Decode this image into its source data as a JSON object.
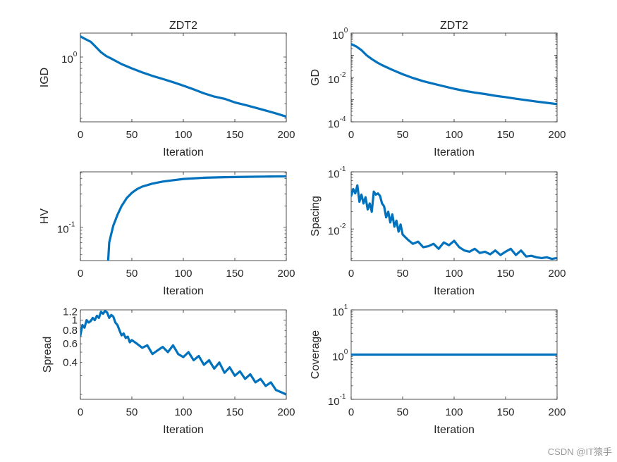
{
  "watermark": "CSDN @IT猿手",
  "line_color": "#0072BD",
  "chart_data": [
    {
      "type": "line",
      "title": "ZDT2",
      "xlabel": "Iteration",
      "ylabel": "IGD",
      "yscale": "log",
      "xlim": [
        0,
        200
      ],
      "ylim": [
        0.28,
        1.6
      ],
      "grid": false,
      "xticks": [
        "0",
        "50",
        "100",
        "150",
        "200"
      ],
      "yticks": [
        {
          "v": 1,
          "b": "10",
          "e": "0"
        }
      ],
      "x": [
        0,
        5,
        10,
        15,
        20,
        25,
        30,
        40,
        50,
        60,
        70,
        80,
        90,
        100,
        110,
        120,
        130,
        140,
        150,
        160,
        170,
        180,
        190,
        200
      ],
      "y": [
        1.5,
        1.42,
        1.35,
        1.22,
        1.1,
        1.02,
        0.97,
        0.87,
        0.8,
        0.74,
        0.69,
        0.65,
        0.61,
        0.57,
        0.53,
        0.49,
        0.46,
        0.44,
        0.41,
        0.39,
        0.37,
        0.35,
        0.33,
        0.31
      ]
    },
    {
      "type": "line",
      "title": "ZDT2",
      "xlabel": "Iteration",
      "ylabel": "GD",
      "yscale": "log",
      "xlim": [
        0,
        200
      ],
      "ylim": [
        0.0001,
        1
      ],
      "grid": false,
      "xticks": [
        "0",
        "50",
        "100",
        "150",
        "200"
      ],
      "yticks": [
        {
          "v": 1,
          "b": "10",
          "e": "0"
        },
        {
          "v": 0.01,
          "b": "10",
          "e": "-2"
        },
        {
          "v": 0.0001,
          "b": "10",
          "e": "-4"
        }
      ],
      "x": [
        0,
        5,
        10,
        15,
        20,
        25,
        30,
        40,
        50,
        60,
        70,
        80,
        90,
        100,
        110,
        120,
        130,
        140,
        150,
        160,
        170,
        180,
        190,
        200
      ],
      "y": [
        0.32,
        0.25,
        0.17,
        0.1,
        0.068,
        0.048,
        0.036,
        0.022,
        0.014,
        0.0095,
        0.0068,
        0.0052,
        0.004,
        0.0031,
        0.0025,
        0.0021,
        0.0018,
        0.0015,
        0.0013,
        0.0011,
        0.00095,
        0.00082,
        0.00072,
        0.00063
      ]
    },
    {
      "type": "line",
      "title": "",
      "xlabel": "Iteration",
      "ylabel": "HV",
      "yscale": "log",
      "xlim": [
        0,
        200
      ],
      "ylim": [
        0.033,
        0.62
      ],
      "grid": false,
      "xticks": [
        "0",
        "50",
        "100",
        "150",
        "200"
      ],
      "yticks": [
        {
          "v": 0.1,
          "b": "10",
          "e": "-1"
        }
      ],
      "x": [
        27,
        28,
        30,
        32,
        34,
        36,
        40,
        45,
        50,
        55,
        60,
        70,
        80,
        90,
        100,
        120,
        140,
        160,
        180,
        200
      ],
      "y": [
        0.033,
        0.06,
        0.08,
        0.105,
        0.125,
        0.15,
        0.2,
        0.26,
        0.31,
        0.35,
        0.38,
        0.42,
        0.45,
        0.47,
        0.49,
        0.51,
        0.52,
        0.525,
        0.53,
        0.535
      ]
    },
    {
      "type": "line",
      "title": "",
      "xlabel": "Iteration",
      "ylabel": "Spacing",
      "yscale": "log",
      "xlim": [
        0,
        200
      ],
      "ylim": [
        0.0028,
        0.1
      ],
      "grid": false,
      "xticks": [
        "0",
        "50",
        "100",
        "150",
        "200"
      ],
      "yticks": [
        {
          "v": 0.1,
          "b": "10",
          "e": "-1"
        },
        {
          "v": 0.01,
          "b": "10",
          "e": "-2"
        }
      ],
      "x": [
        0,
        2,
        4,
        6,
        8,
        10,
        12,
        14,
        16,
        18,
        20,
        22,
        24,
        26,
        28,
        30,
        32,
        34,
        36,
        38,
        40,
        42,
        44,
        46,
        48,
        50,
        55,
        60,
        65,
        70,
        75,
        80,
        85,
        90,
        95,
        100,
        105,
        110,
        115,
        120,
        125,
        130,
        135,
        140,
        145,
        150,
        155,
        160,
        165,
        170,
        175,
        180,
        185,
        190,
        195,
        200
      ],
      "y": [
        0.038,
        0.05,
        0.042,
        0.058,
        0.03,
        0.04,
        0.028,
        0.036,
        0.022,
        0.028,
        0.02,
        0.045,
        0.04,
        0.042,
        0.038,
        0.028,
        0.025,
        0.016,
        0.02,
        0.013,
        0.018,
        0.011,
        0.014,
        0.009,
        0.012,
        0.008,
        0.0065,
        0.0055,
        0.006,
        0.0048,
        0.005,
        0.0055,
        0.0045,
        0.0058,
        0.0052,
        0.0062,
        0.0048,
        0.0042,
        0.004,
        0.0045,
        0.0038,
        0.004,
        0.0036,
        0.0042,
        0.0035,
        0.004,
        0.0045,
        0.0035,
        0.0042,
        0.0033,
        0.0034,
        0.0032,
        0.0031,
        0.0032,
        0.003,
        0.0031
      ]
    },
    {
      "type": "line",
      "title": "",
      "xlabel": "Iteration",
      "ylabel": "Spread",
      "yscale": "log",
      "xlim": [
        0,
        200
      ],
      "ylim": [
        0.18,
        1.25
      ],
      "grid": false,
      "xticks": [
        "0",
        "50",
        "100",
        "150",
        "200"
      ],
      "yticks": [
        {
          "v": 1.2,
          "t": "1.2"
        },
        {
          "v": 1,
          "t": "1"
        },
        {
          "v": 0.8,
          "t": "0.8"
        },
        {
          "v": 0.6,
          "t": "0.6"
        },
        {
          "v": 0.4,
          "t": "0.4"
        }
      ],
      "x": [
        0,
        2,
        4,
        6,
        8,
        10,
        12,
        14,
        16,
        18,
        20,
        22,
        24,
        26,
        28,
        30,
        32,
        34,
        36,
        38,
        40,
        42,
        44,
        46,
        48,
        50,
        55,
        60,
        65,
        70,
        75,
        80,
        85,
        90,
        95,
        100,
        105,
        110,
        115,
        120,
        125,
        130,
        135,
        140,
        145,
        150,
        155,
        160,
        165,
        170,
        175,
        180,
        185,
        190,
        195,
        200
      ],
      "y": [
        0.72,
        0.9,
        0.85,
        1.0,
        0.95,
        0.98,
        1.05,
        1.0,
        1.1,
        1.05,
        1.2,
        1.15,
        1.22,
        1.18,
        1.05,
        1.12,
        1.08,
        0.95,
        0.9,
        0.8,
        0.72,
        0.75,
        0.68,
        0.7,
        0.62,
        0.65,
        0.6,
        0.55,
        0.58,
        0.48,
        0.52,
        0.56,
        0.5,
        0.58,
        0.48,
        0.45,
        0.5,
        0.42,
        0.46,
        0.38,
        0.42,
        0.35,
        0.4,
        0.32,
        0.36,
        0.3,
        0.33,
        0.28,
        0.31,
        0.26,
        0.28,
        0.24,
        0.26,
        0.22,
        0.21,
        0.2
      ]
    },
    {
      "type": "line",
      "title": "",
      "xlabel": "Iteration",
      "ylabel": "Coverage",
      "yscale": "log",
      "xlim": [
        0,
        200
      ],
      "ylim": [
        0.1,
        10
      ],
      "grid": false,
      "xticks": [
        "0",
        "50",
        "100",
        "150",
        "200"
      ],
      "yticks": [
        {
          "v": 10,
          "b": "10",
          "e": "1"
        },
        {
          "v": 1,
          "b": "10",
          "e": "0"
        },
        {
          "v": 0.1,
          "b": "10",
          "e": "-1"
        }
      ],
      "x": [
        0,
        200
      ],
      "y": [
        1,
        1
      ]
    }
  ]
}
